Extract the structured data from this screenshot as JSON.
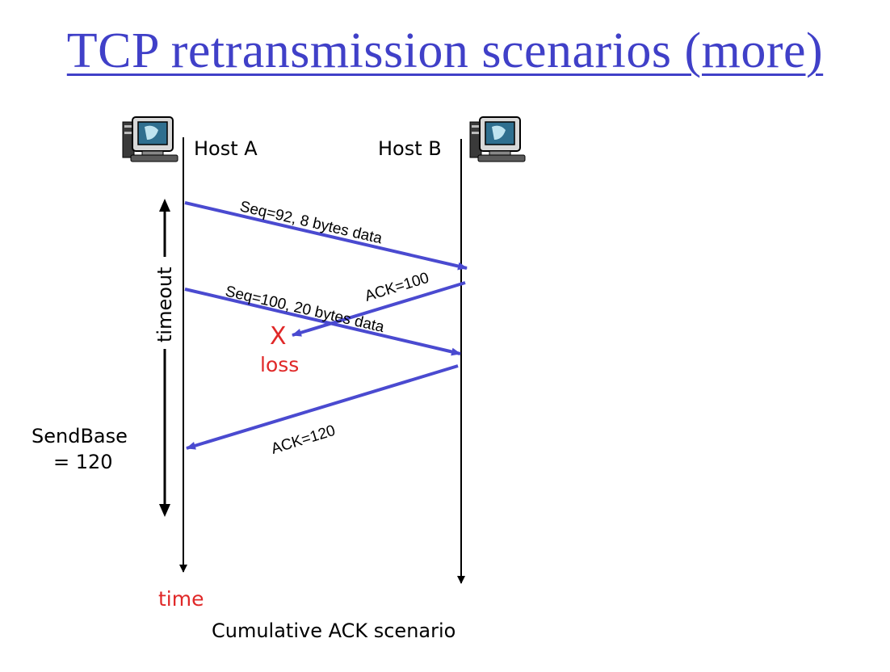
{
  "title": "TCP retransmission scenarios (more)",
  "hosts": {
    "a_label": "Host A",
    "b_label": "Host B"
  },
  "messages": {
    "seq92": "Seq=92, 8 bytes data",
    "ack100": "ACK=100",
    "seq100": "Seq=100, 20 bytes data",
    "ack120": "ACK=120"
  },
  "annotations": {
    "timeout": "timeout",
    "loss_mark": "X",
    "loss": "loss",
    "sendbase_line1": "SendBase",
    "sendbase_line2": "= 120",
    "time": "time"
  },
  "caption": "Cumulative ACK scenario",
  "colors": {
    "title": "#4040c8",
    "arrow": "#4a4ad0",
    "loss": "#e02828"
  },
  "icons": [
    "computer-icon",
    "computer-icon"
  ]
}
